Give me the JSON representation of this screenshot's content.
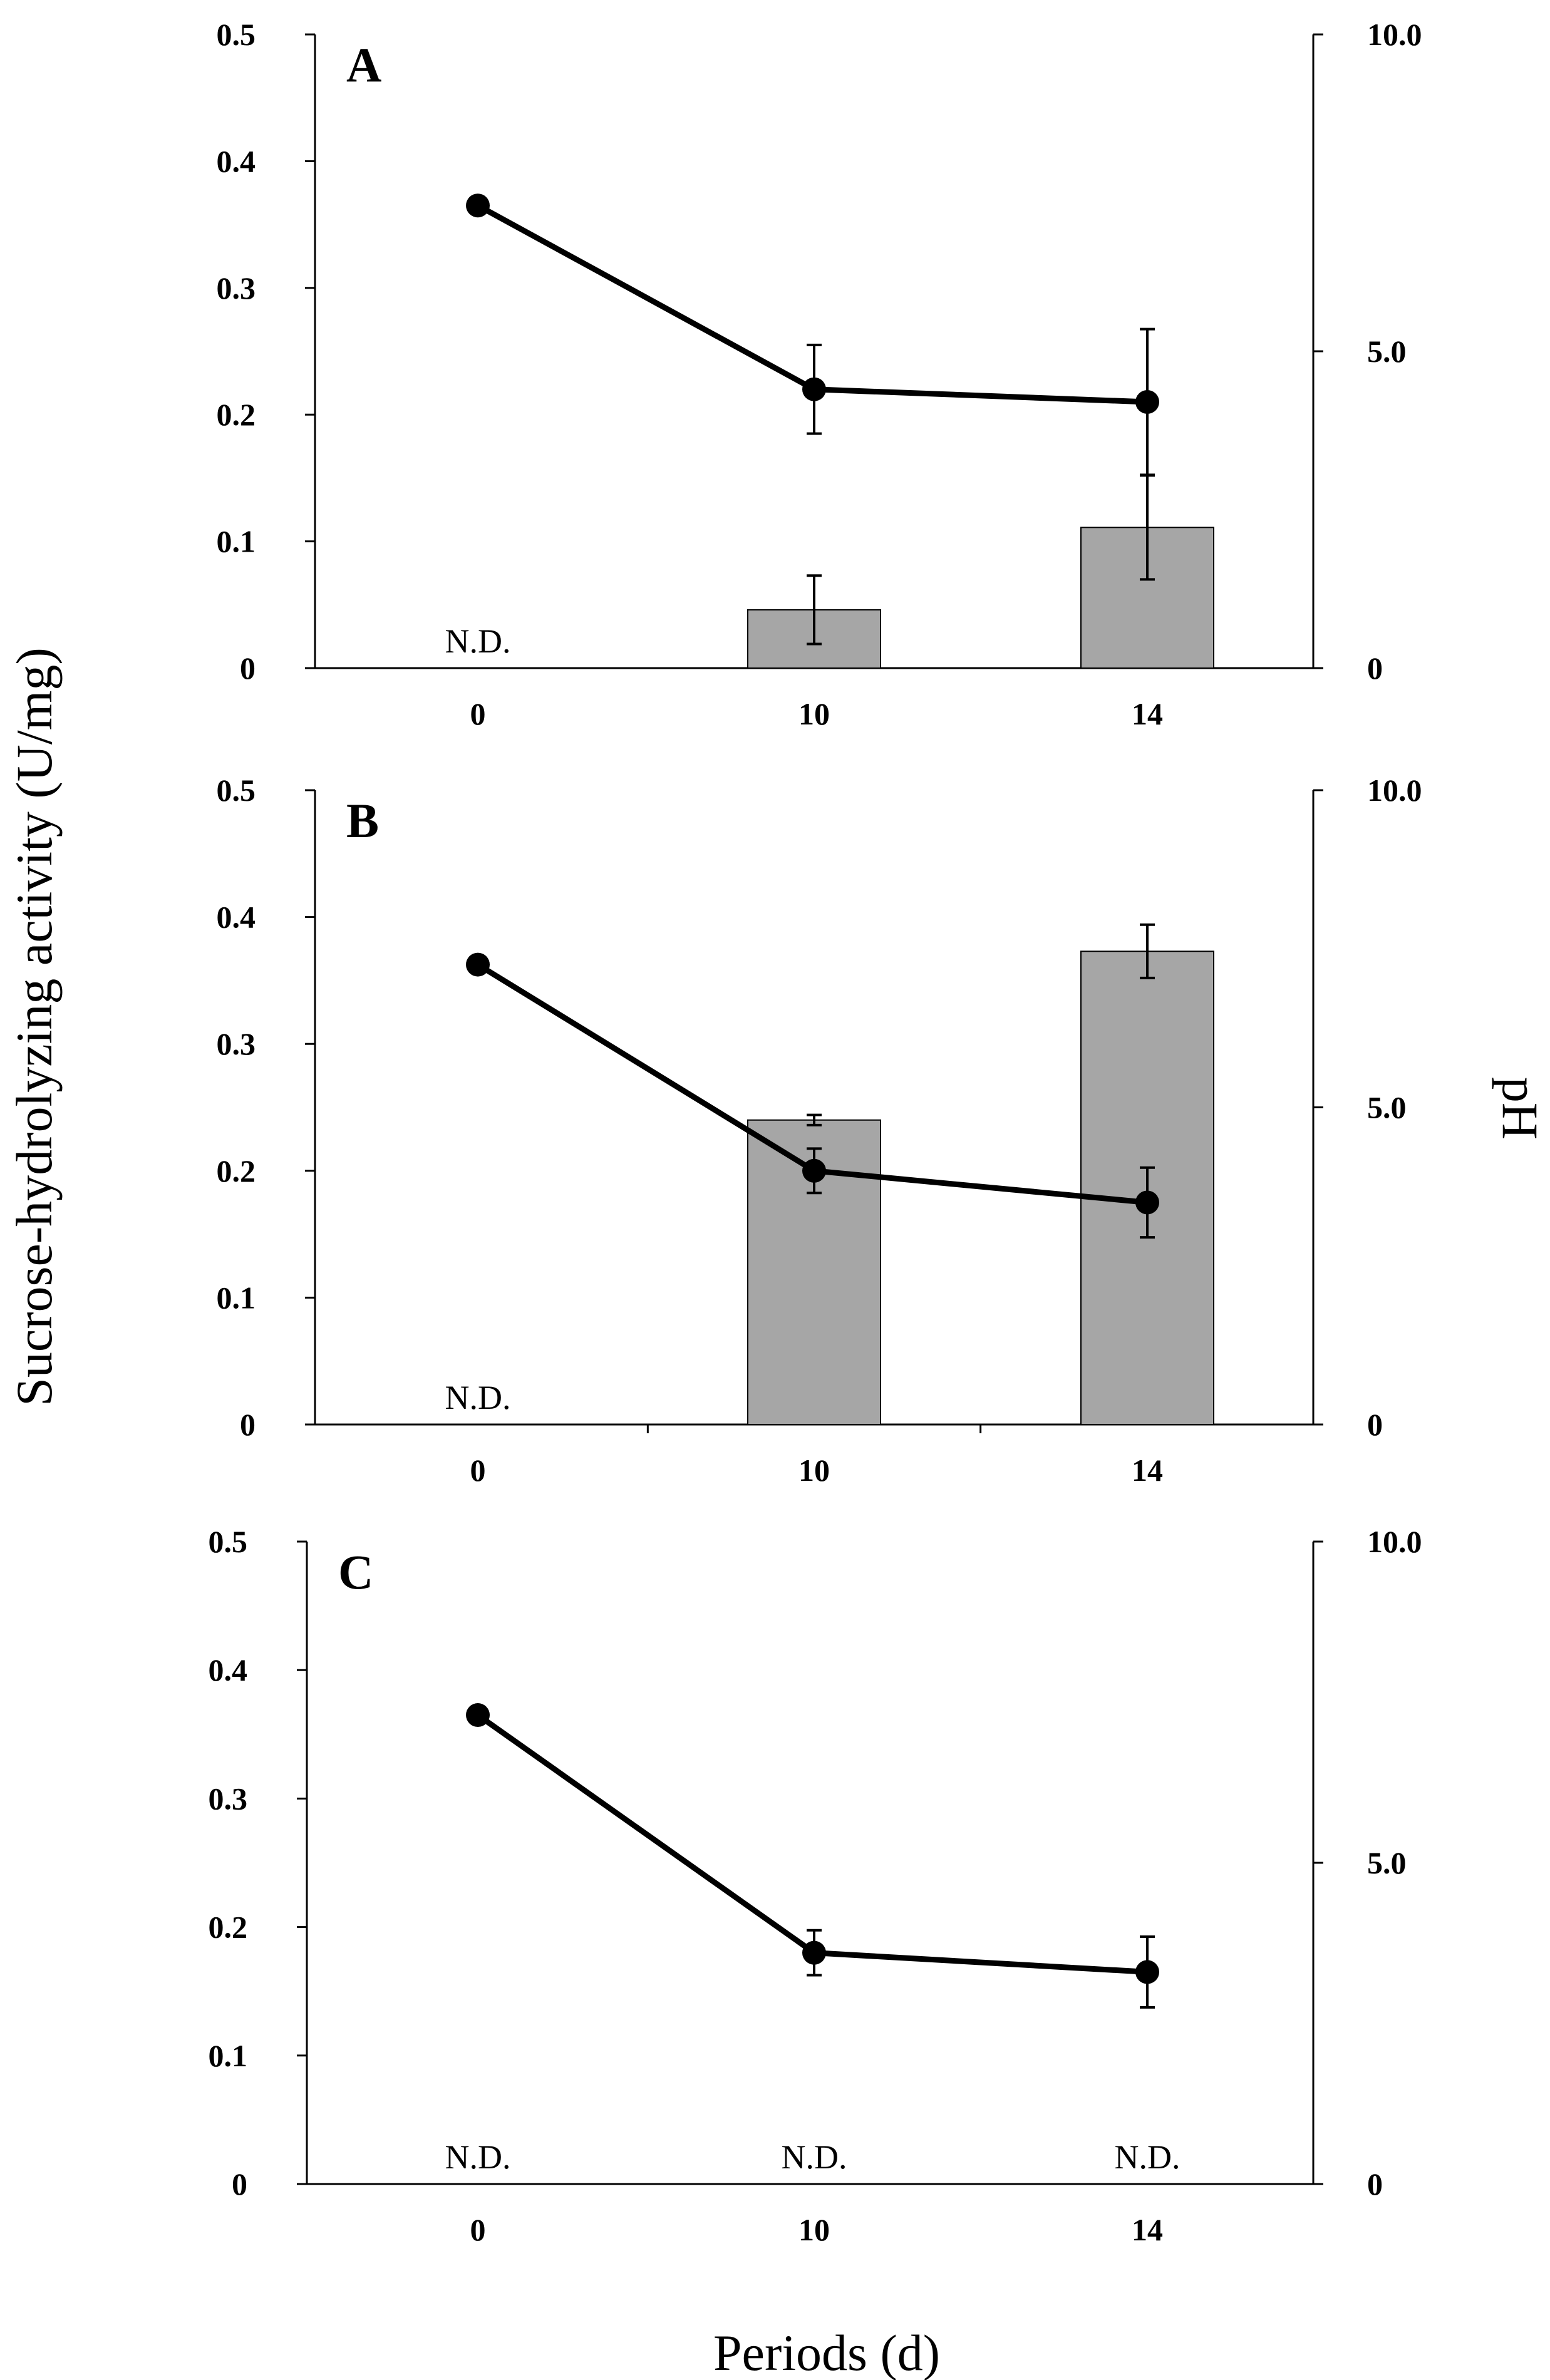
{
  "chart_data": {
    "type": "bar+line",
    "left_axis_title": "Sucrose-hydrolyzing activity (U/mg)",
    "right_axis_title": "pH",
    "x_axis_title": "Periods (d)",
    "categories": [
      "0",
      "10",
      "14"
    ],
    "left_ylim": [
      0,
      0.5
    ],
    "left_ticks": [
      "0",
      "0.1",
      "0.2",
      "0.3",
      "0.4",
      "0.5"
    ],
    "right_ylim": [
      0,
      10
    ],
    "right_ticks": [
      "0",
      "5.0",
      "10.0"
    ],
    "nd_label": "N.D.",
    "panels": [
      {
        "letter": "A",
        "activity": [
          null,
          0.046,
          0.111
        ],
        "activity_err": [
          null,
          0.027,
          0.041
        ],
        "ph": [
          7.3,
          4.4,
          4.2
        ],
        "ph_err": [
          0.05,
          0.7,
          1.15
        ]
      },
      {
        "letter": "B",
        "activity": [
          null,
          0.24,
          0.373
        ],
        "activity_err": [
          null,
          0.004,
          0.021
        ],
        "ph": [
          7.25,
          4.0,
          3.5
        ],
        "ph_err": [
          0.05,
          0.35,
          0.55
        ]
      },
      {
        "letter": "C",
        "activity": [
          null,
          null,
          null
        ],
        "activity_err": [
          null,
          null,
          null
        ],
        "ph": [
          7.3,
          3.6,
          3.3
        ],
        "ph_err": [
          0.12,
          0.35,
          0.55
        ]
      }
    ]
  }
}
